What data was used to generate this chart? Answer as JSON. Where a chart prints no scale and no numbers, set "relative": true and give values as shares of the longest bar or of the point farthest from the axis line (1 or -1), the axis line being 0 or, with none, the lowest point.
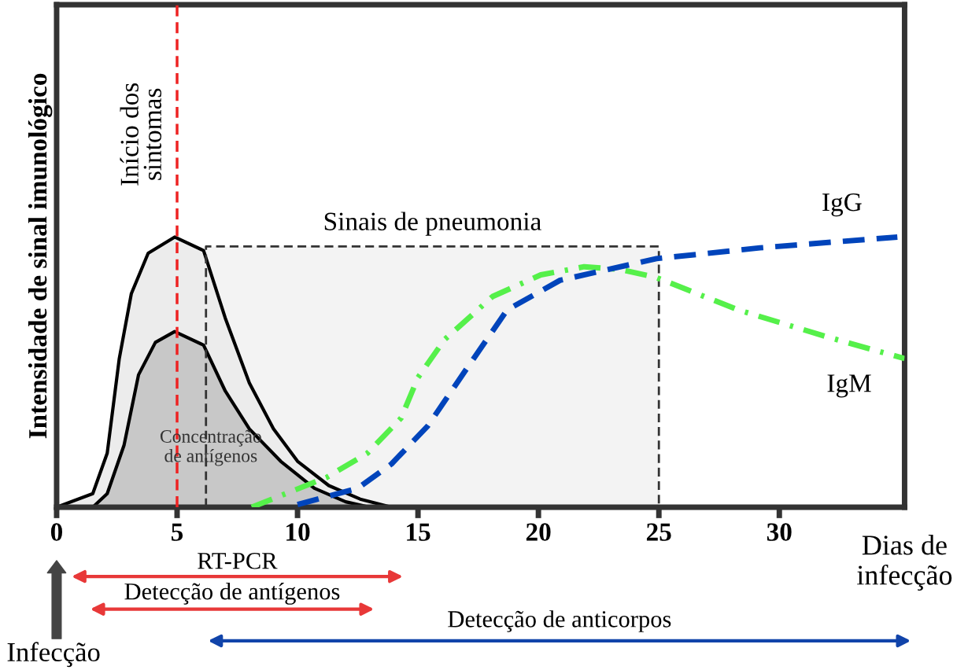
{
  "chart_data": {
    "type": "area",
    "relative": true,
    "ylabel": "Intensidade de sinal imunológico",
    "xlabel": "Dias de\ninfecção",
    "x": [
      0,
      1.5,
      2.1,
      2.6,
      3.1,
      3.8,
      4.9,
      6.1,
      7.0,
      8.0,
      9.0,
      10.0,
      11.3,
      12.6,
      13.9
    ],
    "xlim": [
      0,
      35.2
    ],
    "xticks": [
      0,
      5,
      10,
      15,
      20,
      25,
      30
    ],
    "grid": false,
    "series": [
      {
        "color": "#ececec",
        "values": [
          0,
          0.05,
          0.2,
          0.55,
          0.79,
          0.94,
          1.0,
          0.95,
          0.7,
          0.46,
          0.29,
          0.17,
          0.08,
          0.03,
          0
        ]
      },
      {
        "color": "#c8c8c8",
        "x": [
          1.5,
          2.1,
          2.8,
          3.4,
          4.1,
          4.9,
          6.1,
          7.0,
          8.0,
          9.3,
          10.7,
          12.0,
          13.0
        ],
        "values": [
          0,
          0.05,
          0.23,
          0.49,
          0.61,
          0.65,
          0.6,
          0.43,
          0.29,
          0.17,
          0.07,
          0.02,
          0
        ]
      },
      {
        "type": "line",
        "name": "IgM",
        "color": "#55f04a",
        "line_style": "dashdot",
        "x": [
          8.1,
          11.2,
          12.9,
          14.3,
          15.0,
          16.1,
          18.1,
          20.1,
          21.9,
          23.4,
          24.9,
          28.3,
          32.0,
          35.2
        ],
        "values": [
          0.0,
          0.11,
          0.2,
          0.33,
          0.48,
          0.62,
          0.78,
          0.86,
          0.89,
          0.88,
          0.85,
          0.73,
          0.63,
          0.55
        ]
      },
      {
        "type": "line",
        "name": "IgG",
        "color": "#0044bb",
        "line_style": "dashed",
        "x": [
          10.0,
          12.5,
          13.9,
          15.4,
          17.0,
          18.7,
          20.9,
          22.9,
          24.9,
          29.2,
          34.9
        ],
        "values": [
          0.01,
          0.07,
          0.16,
          0.3,
          0.51,
          0.73,
          0.84,
          0.88,
          0.92,
          0.96,
          1.0
        ]
      }
    ],
    "ref_lines": [
      {
        "axis": "x",
        "value": 5,
        "label": "Início dos\nsintomas",
        "color": "#ee2222",
        "line_style": "dashed"
      }
    ],
    "bands": [
      {
        "axis": "x",
        "from": 6.2,
        "to": 25,
        "label": "Sinais de pneumonia",
        "color": "#f3f3f3"
      }
    ],
    "annotations": [
      "Concentração\nde antígenos",
      "RT-PCR",
      "Detecção de antígenos",
      "Detecção de anticorpos",
      "Infecção"
    ]
  }
}
